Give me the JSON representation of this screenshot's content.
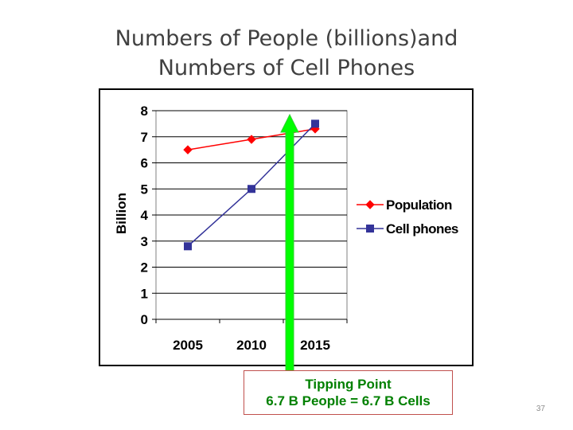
{
  "slide": {
    "title_line1": "Numbers of People (billions)and",
    "title_line2": "Numbers of Cell Phones",
    "page_number": "37"
  },
  "callout": {
    "line1": "Tipping Point",
    "line2": "6.7 B People =  6.7 B Cells",
    "text_color": "#008000",
    "border_color": "#c0504d"
  },
  "arrow": {
    "color": "#00ff00",
    "outline": "#33cc33",
    "x_value": 2013
  },
  "chart_data": {
    "type": "line",
    "ylabel": "Billion",
    "ylim": [
      0,
      8
    ],
    "yticks": [
      0,
      1,
      2,
      3,
      4,
      5,
      6,
      7,
      8
    ],
    "categories": [
      "2005",
      "2010",
      "2015"
    ],
    "grid": true,
    "legend_position": "right",
    "series": [
      {
        "name": "Population",
        "values": [
          6.5,
          6.9,
          7.3
        ],
        "color": "#ff0000",
        "marker": "diamond"
      },
      {
        "name": "Cell phones",
        "values": [
          2.8,
          5.0,
          7.5
        ],
        "color": "#333399",
        "marker": "square"
      }
    ]
  }
}
